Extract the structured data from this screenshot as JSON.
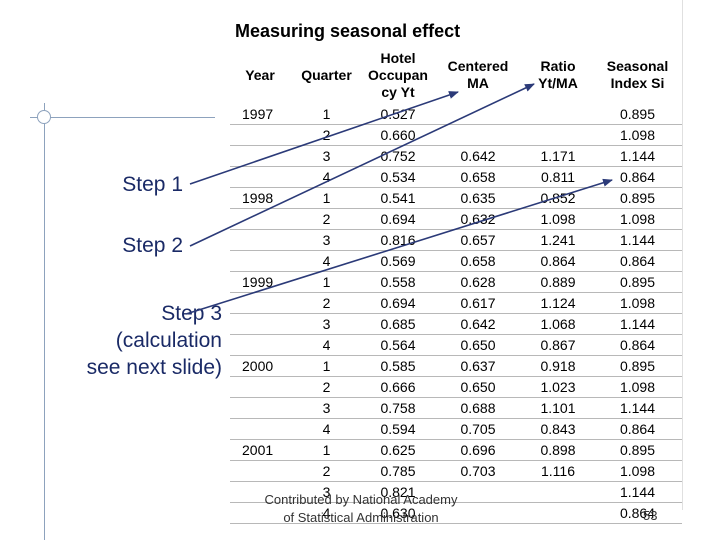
{
  "slide": {
    "steps": [
      {
        "label": "Step 1"
      },
      {
        "label": "Step 2"
      },
      {
        "label": "Step 3\n(calculation\nsee next slide)"
      }
    ],
    "footer": "Contributed by National Academy\nof Statistical Administration",
    "page_number": "53"
  },
  "table": {
    "title": "Measuring seasonal effect",
    "headers": [
      "Year",
      "Quarter",
      "Hotel Occupan cy Yt",
      "Centered MA",
      "Ratio Yt/MA",
      "Seasonal Index Si"
    ],
    "rows": [
      [
        "1997",
        "1",
        "0.527",
        "",
        "",
        "0.895"
      ],
      [
        "",
        "2",
        "0.660",
        "",
        "",
        "1.098"
      ],
      [
        "",
        "3",
        "0.752",
        "0.642",
        "1.171",
        "1.144"
      ],
      [
        "",
        "4",
        "0.534",
        "0.658",
        "0.811",
        "0.864"
      ],
      [
        "1998",
        "1",
        "0.541",
        "0.635",
        "0.852",
        "0.895"
      ],
      [
        "",
        "2",
        "0.694",
        "0.632",
        "1.098",
        "1.098"
      ],
      [
        "",
        "3",
        "0.816",
        "0.657",
        "1.241",
        "1.144"
      ],
      [
        "",
        "4",
        "0.569",
        "0.658",
        "0.864",
        "0.864"
      ],
      [
        "1999",
        "1",
        "0.558",
        "0.628",
        "0.889",
        "0.895"
      ],
      [
        "",
        "2",
        "0.694",
        "0.617",
        "1.124",
        "1.098"
      ],
      [
        "",
        "3",
        "0.685",
        "0.642",
        "1.068",
        "1.144"
      ],
      [
        "",
        "4",
        "0.564",
        "0.650",
        "0.867",
        "0.864"
      ],
      [
        "2000",
        "1",
        "0.585",
        "0.637",
        "0.918",
        "0.895"
      ],
      [
        "",
        "2",
        "0.666",
        "0.650",
        "1.023",
        "1.098"
      ],
      [
        "",
        "3",
        "0.758",
        "0.688",
        "1.101",
        "1.144"
      ],
      [
        "",
        "4",
        "0.594",
        "0.705",
        "0.843",
        "0.864"
      ],
      [
        "2001",
        "1",
        "0.625",
        "0.696",
        "0.898",
        "0.895"
      ],
      [
        "",
        "2",
        "0.785",
        "0.703",
        "1.116",
        "1.098"
      ],
      [
        "",
        "3",
        "0.821",
        "",
        "",
        "1.144"
      ],
      [
        "",
        "4",
        "0.630",
        "",
        "",
        "0.864"
      ]
    ]
  },
  "colors": {
    "step_text": "#1a2a66",
    "arrow": "#2b3a78",
    "decor_line": "#8da2bd"
  }
}
